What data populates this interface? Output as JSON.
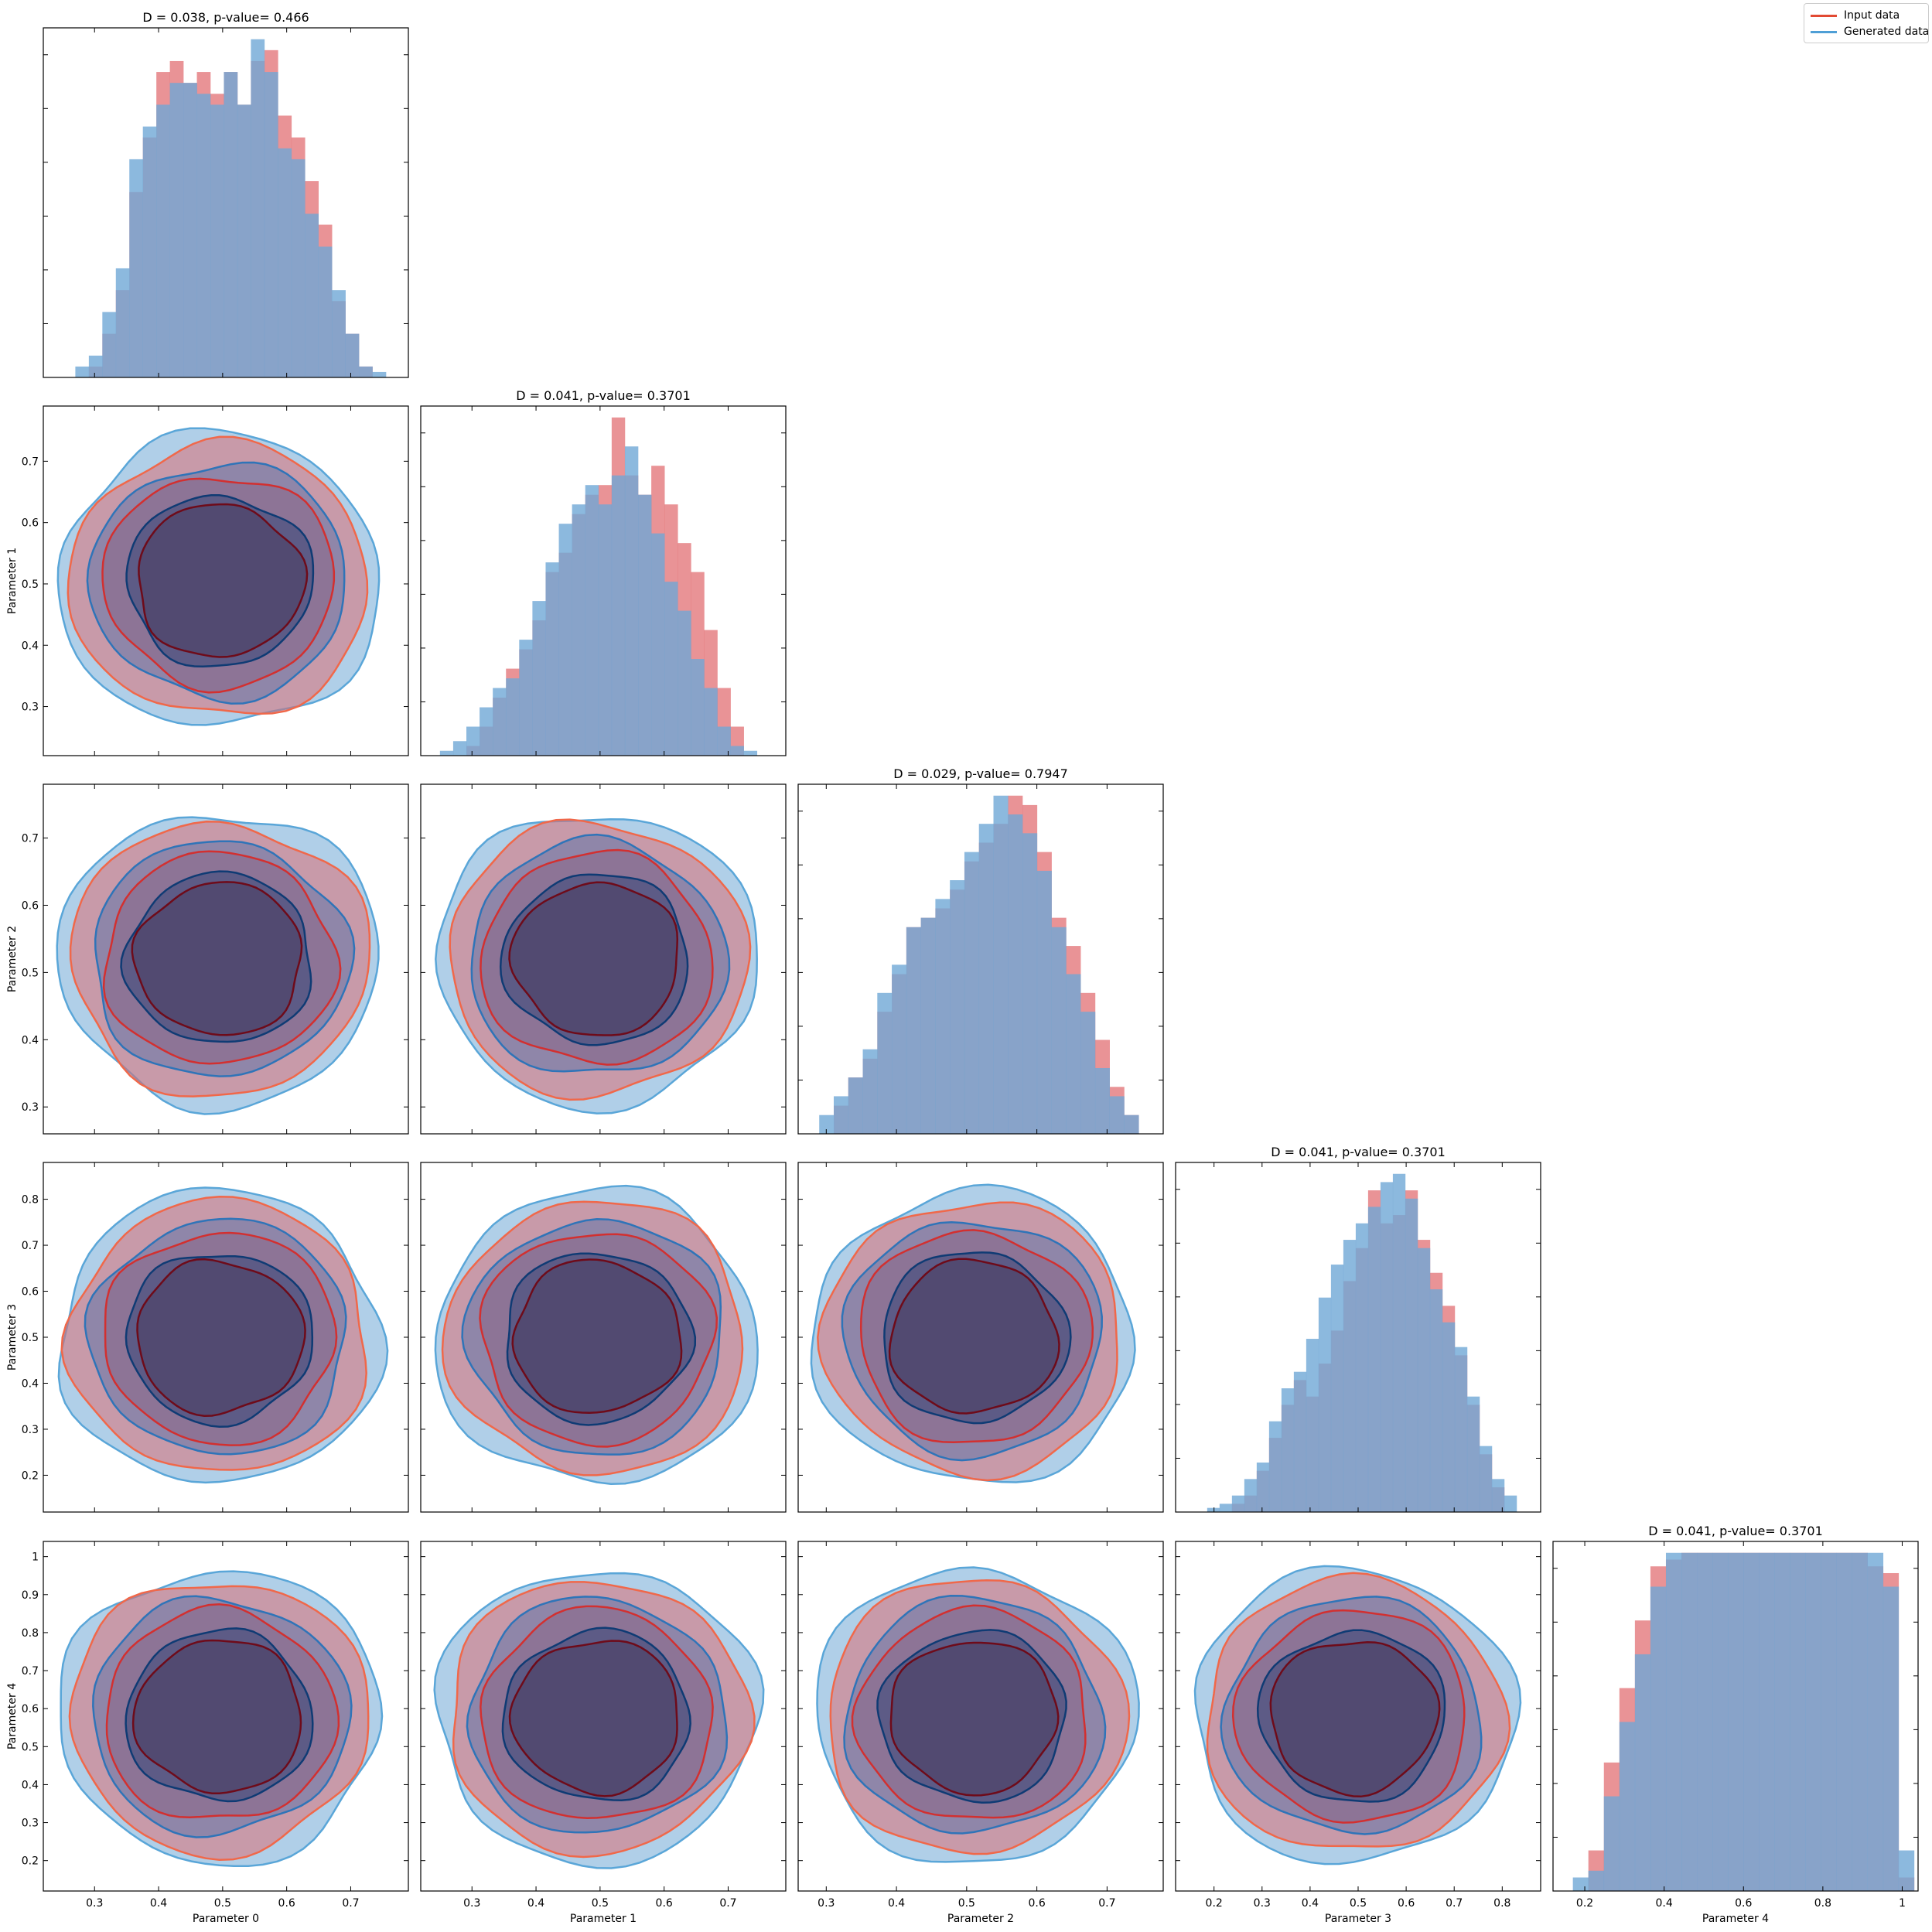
{
  "legend": {
    "input_label": "Input data",
    "generated_label": "Generated data",
    "input_color": "#e24a33",
    "generated_color": "#4f9fd6"
  },
  "colors": {
    "input_fill": "#e0656a",
    "generated_fill": "#6fa8d6",
    "input_line_light": "#f0684a",
    "input_line_mid": "#d23030",
    "input_line_dark": "#6e0b1a",
    "gen_line_light": "#5aa6d8",
    "gen_line_mid": "#2f74b8",
    "gen_line_dark": "#0f3b74"
  },
  "chart_data": {
    "type": "corner",
    "parameters": [
      "Parameter 0",
      "Parameter 1",
      "Parameter 2",
      "Parameter 3",
      "Parameter 4"
    ],
    "diagonal_titles": [
      "D = 0.038, p-value= 0.466",
      "D = 0.041, p-value= 0.3701",
      "D = 0.029, p-value= 0.7947",
      "D = 0.041, p-value= 0.3701",
      "D = 0.041, p-value= 0.3701"
    ],
    "ranges": [
      [
        0.22,
        0.79
      ],
      [
        0.22,
        0.79
      ],
      [
        0.26,
        0.78
      ],
      [
        0.12,
        0.88
      ],
      [
        0.12,
        1.04
      ]
    ],
    "x_ticks": [
      [
        0.3,
        0.4,
        0.5,
        0.6,
        0.7
      ],
      [
        0.3,
        0.4,
        0.5,
        0.6,
        0.7
      ],
      [
        0.3,
        0.4,
        0.5,
        0.6,
        0.7
      ],
      [
        0.2,
        0.3,
        0.4,
        0.5,
        0.6,
        0.7,
        0.8
      ],
      [
        0.2,
        0.4,
        0.6,
        0.8,
        1.0
      ]
    ],
    "y_ticks": [
      [
        0.3,
        0.4,
        0.5,
        0.6,
        0.7
      ],
      [
        0.3,
        0.4,
        0.5,
        0.6,
        0.7
      ],
      [
        0.2,
        0.3,
        0.4,
        0.5,
        0.6,
        0.7,
        0.8
      ],
      [
        0.2,
        0.3,
        0.4,
        0.5,
        0.6,
        0.7,
        0.8,
        0.9,
        1.0
      ]
    ],
    "y_ticks_row": [
      null,
      [
        0.3,
        0.4,
        0.5,
        0.6,
        0.7
      ],
      [
        0.3,
        0.4,
        0.5,
        0.6,
        0.7
      ],
      [
        0.2,
        0.3,
        0.4,
        0.5,
        0.6,
        0.7,
        0.8
      ],
      [
        0.2,
        0.3,
        0.4,
        0.5,
        0.6,
        0.7,
        0.8,
        0.9,
        1.0
      ]
    ],
    "histograms": [
      {
        "bins": [
          0.27,
          0.755
        ],
        "input": [
          0,
          2,
          8,
          16,
          34,
          44,
          56,
          58,
          54,
          56,
          52,
          56,
          50,
          58,
          60,
          48,
          44,
          36,
          28,
          14,
          8,
          2,
          0
        ],
        "generated": [
          2,
          4,
          12,
          20,
          40,
          46,
          50,
          54,
          54,
          52,
          50,
          56,
          50,
          62,
          56,
          42,
          40,
          30,
          24,
          16,
          8,
          2,
          1
        ]
      },
      {
        "bins": [
          0.25,
          0.745
        ],
        "input": [
          0,
          0,
          2,
          6,
          12,
          18,
          22,
          28,
          38,
          42,
          50,
          54,
          56,
          70,
          58,
          54,
          60,
          52,
          44,
          38,
          26,
          14,
          6,
          0
        ],
        "generated": [
          1,
          3,
          6,
          10,
          14,
          16,
          24,
          32,
          40,
          48,
          52,
          56,
          52,
          58,
          64,
          54,
          46,
          36,
          30,
          20,
          14,
          6,
          2,
          1
        ]
      },
      {
        "bins": [
          0.29,
          0.745
        ],
        "input": [
          0,
          6,
          12,
          16,
          26,
          34,
          44,
          46,
          48,
          52,
          58,
          62,
          66,
          72,
          70,
          60,
          46,
          40,
          30,
          20,
          10,
          4
        ],
        "generated": [
          4,
          8,
          12,
          18,
          30,
          36,
          44,
          46,
          50,
          54,
          60,
          66,
          72,
          68,
          64,
          56,
          44,
          34,
          26,
          14,
          8,
          4
        ]
      },
      {
        "bins": [
          0.16,
          0.83
        ],
        "input": [
          0,
          0,
          0,
          2,
          4,
          10,
          18,
          26,
          32,
          28,
          36,
          44,
          56,
          64,
          78,
          70,
          72,
          78,
          66,
          58,
          50,
          38,
          26,
          14,
          6,
          0
        ],
        "generated": [
          0,
          1,
          2,
          4,
          8,
          12,
          22,
          30,
          34,
          42,
          52,
          60,
          66,
          70,
          74,
          80,
          82,
          76,
          64,
          54,
          46,
          40,
          28,
          16,
          8,
          4
        ]
      },
      {
        "bins": [
          0.17,
          1.03
        ],
        "input": [
          0,
          12,
          38,
          60,
          80,
          96,
          98,
          100,
          100,
          100,
          100,
          100,
          100,
          100,
          100,
          100,
          100,
          100,
          100,
          96,
          94,
          4
        ],
        "generated": [
          4,
          6,
          28,
          50,
          70,
          90,
          100,
          100,
          100,
          100,
          100,
          100,
          100,
          100,
          100,
          100,
          100,
          100,
          100,
          100,
          90,
          12
        ]
      }
    ]
  }
}
